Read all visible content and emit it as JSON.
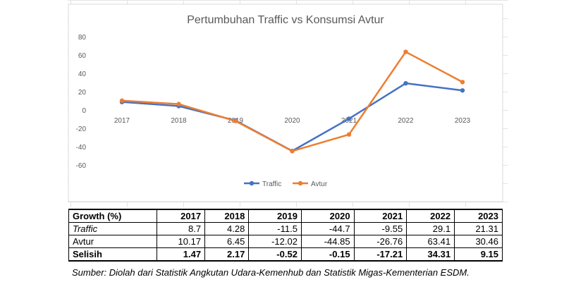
{
  "chart_data": {
    "type": "line",
    "title": "Pertumbuhan Traffic vs Konsumsi Avtur",
    "categories": [
      "2017",
      "2018",
      "2019",
      "2020",
      "2021",
      "2022",
      "2023"
    ],
    "ylim": [
      -60,
      80
    ],
    "yticks": [
      80,
      60,
      40,
      20,
      0,
      -20,
      -40,
      -60
    ],
    "grid": false,
    "legend": "bottom",
    "series": [
      {
        "name": "Traffic",
        "color": "#4472c4",
        "values": [
          8.7,
          4.28,
          -11.5,
          -44.7,
          -9.55,
          29.1,
          21.31
        ]
      },
      {
        "name": "Avtur",
        "color": "#ed7d31",
        "values": [
          10.17,
          6.45,
          -12.02,
          -44.85,
          -26.76,
          63.41,
          30.46
        ]
      }
    ]
  },
  "table": {
    "header": [
      "Growth (%)",
      "2017",
      "2018",
      "2019",
      "2020",
      "2021",
      "2022",
      "2023"
    ],
    "rows": [
      [
        "Traffic",
        "8.7",
        "4.28",
        "-11.5",
        "-44.7",
        "-9.55",
        "29.1",
        "21.31"
      ],
      [
        "Avtur",
        "10.17",
        "6.45",
        "-12.02",
        "-44.85",
        "-26.76",
        "63.41",
        "30.46"
      ],
      [
        "Selisih",
        "1.47",
        "2.17",
        "-0.52",
        "-0.15",
        "-17.21",
        "34.31",
        "9.15"
      ]
    ]
  },
  "source": "Sumber: Diolah dari Statistik Angkutan Udara-Kemenhub dan Statistik Migas-Kementerian ESDM."
}
